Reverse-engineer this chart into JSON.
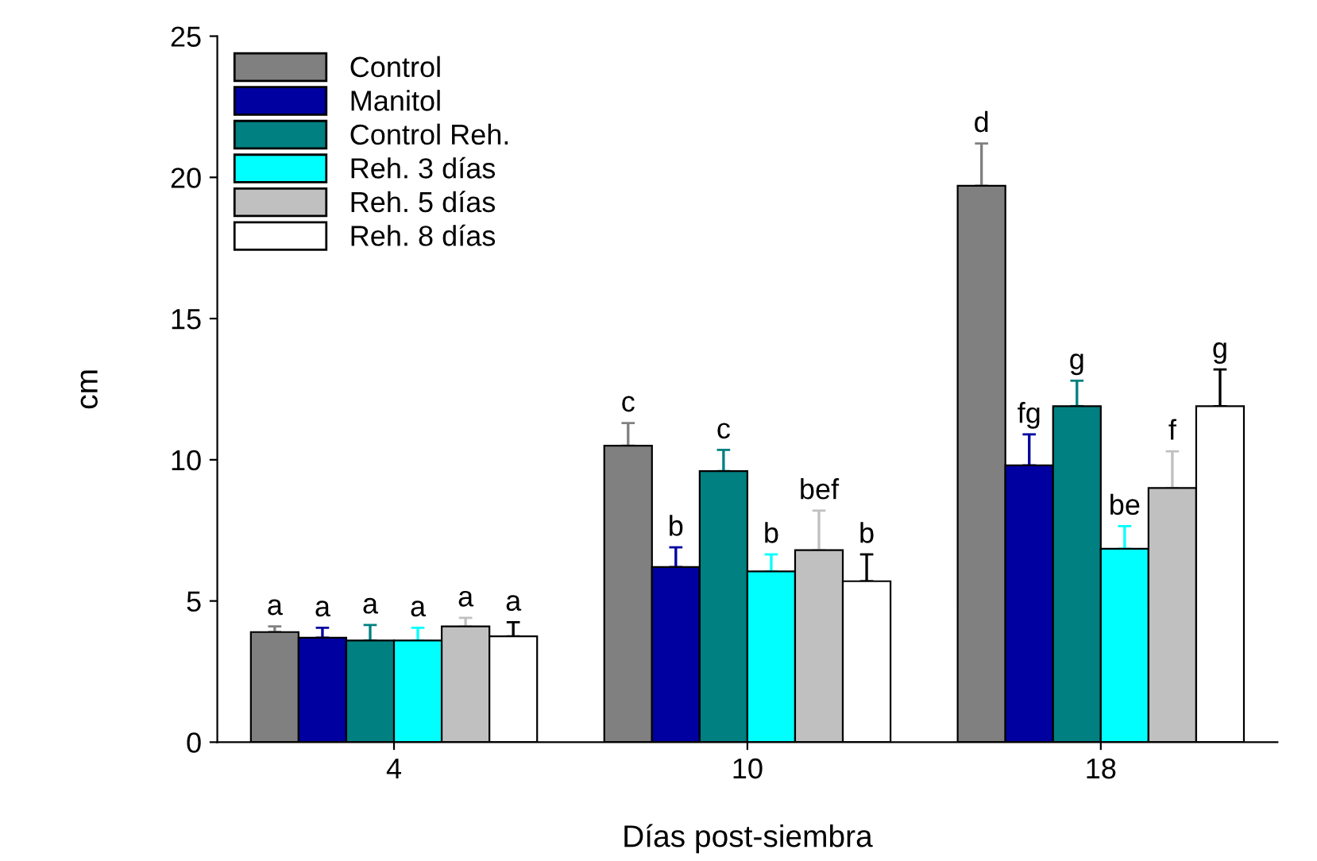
{
  "chart_data": {
    "type": "bar",
    "xlabel": "Días post-siembra",
    "ylabel": "cm",
    "categories": [
      "4",
      "10",
      "18"
    ],
    "ylim": [
      0,
      25
    ],
    "yticks": [
      0,
      5,
      10,
      15,
      20,
      25
    ],
    "grid": false,
    "legend": "top left",
    "series": [
      {
        "name": "Control",
        "color": "#808080",
        "values": [
          3.9,
          10.5,
          19.7
        ],
        "errors": [
          [
            3.9,
            4.1
          ],
          [
            10.5,
            11.3
          ],
          [
            19.7,
            21.2
          ]
        ],
        "value_labels": [
          "a",
          "c",
          "d"
        ]
      },
      {
        "name": "Manitol",
        "color": "#0000a0",
        "values": [
          3.7,
          6.2,
          9.8
        ],
        "errors": [
          [
            3.7,
            4.05
          ],
          [
            6.2,
            6.9
          ],
          [
            9.8,
            10.9
          ]
        ],
        "value_labels": [
          "a",
          "b",
          "fg"
        ]
      },
      {
        "name": "Control Reh.",
        "color": "#008080",
        "values": [
          3.6,
          9.6,
          11.9
        ],
        "errors": [
          [
            3.6,
            4.15
          ],
          [
            9.6,
            10.35
          ],
          [
            11.9,
            12.8
          ]
        ],
        "value_labels": [
          "a",
          "c",
          "g"
        ]
      },
      {
        "name": "Reh. 3 días",
        "color": "#00ffff",
        "values": [
          3.6,
          6.05,
          6.85
        ],
        "errors": [
          [
            3.6,
            4.05
          ],
          [
            6.05,
            6.65
          ],
          [
            6.85,
            7.65
          ]
        ],
        "value_labels": [
          "a",
          "b",
          "be"
        ]
      },
      {
        "name": "Reh. 5 días",
        "color": "#c0c0c0",
        "values": [
          4.1,
          6.8,
          9.0
        ],
        "errors": [
          [
            4.1,
            4.4
          ],
          [
            6.8,
            8.2
          ],
          [
            9.0,
            10.3
          ]
        ],
        "value_labels": [
          "a",
          "bef",
          "f"
        ]
      },
      {
        "name": "Reh. 8 días",
        "color": "#ffffff",
        "values": [
          3.75,
          5.7,
          11.9
        ],
        "errors": [
          [
            3.75,
            4.25
          ],
          [
            5.7,
            6.65
          ],
          [
            11.9,
            13.2
          ]
        ],
        "value_labels": [
          "a",
          "b",
          "g"
        ]
      }
    ]
  }
}
